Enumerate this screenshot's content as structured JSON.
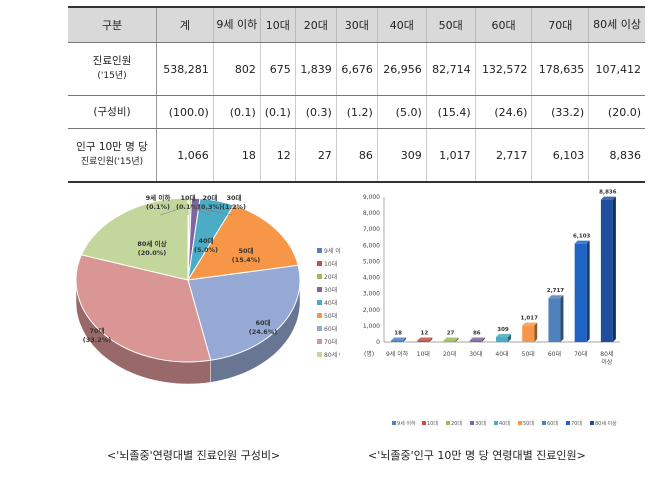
{
  "table": {
    "header": [
      "구분",
      "계",
      "9세 이하",
      "10대",
      "20대",
      "30대",
      "40대",
      "50대",
      "60대",
      "70대",
      "80세 이상"
    ],
    "rows": [
      {
        "label_line1": "진료인원",
        "label_line2": "('15년)",
        "values": [
          "538,281",
          "802",
          "675",
          "1,839",
          "6,676",
          "26,956",
          "82,714",
          "132,572",
          "178,635",
          "107,412"
        ]
      },
      {
        "label_line1": "(구성비)",
        "label_line2": "",
        "values": [
          "(100.0)",
          "(0.1)",
          "(0.1)",
          "(0.3)",
          "(1.2)",
          "(5.0)",
          "(15.4)",
          "(24.6)",
          "(33.2)",
          "(20.0)"
        ]
      },
      {
        "label_line1": "인구 10만 명 당",
        "label_line2": "진료인원('15년)",
        "values": [
          "1,066",
          "18",
          "12",
          "27",
          "86",
          "309",
          "1,017",
          "2,717",
          "6,103",
          "8,836"
        ]
      }
    ]
  },
  "chart_data": [
    {
      "type": "pie",
      "categories": [
        "9세 이하",
        "10대",
        "20대",
        "30대",
        "40대",
        "50대",
        "60대",
        "70대",
        "80세 이상"
      ],
      "values": [
        0.1,
        0.1,
        0.3,
        1.2,
        5.0,
        15.4,
        24.6,
        33.2,
        20.0
      ],
      "labels": [
        "9세 이하\n(0.1%)",
        "10대\n(0.1%)",
        "20대\n(0.3%)",
        "30대\n(1.2%)",
        "40대\n(5.0%)",
        "50대\n(15.4%)",
        "60대\n(24.6%)",
        "70대\n(33.2%)",
        "80세 이상\n(20.0%)"
      ],
      "colors": [
        "#4f81bd",
        "#c0504d",
        "#9bbb59",
        "#8064a2",
        "#4bacc6",
        "#f79646",
        "#95a9d4",
        "#d99694",
        "#c3d69b"
      ],
      "legend": "right",
      "caption": "<'뇌졸중'연령대별 진료인원 구성비>"
    },
    {
      "type": "bar",
      "categories": [
        "9세 이하",
        "10대",
        "20대",
        "30대",
        "40대",
        "50대",
        "60대",
        "70대",
        "80세 이상"
      ],
      "values": [
        18,
        12,
        27,
        86,
        309,
        1017,
        2717,
        6103,
        8836
      ],
      "value_labels": [
        "18",
        "12",
        "27",
        "86",
        "309",
        "1,017",
        "2,717",
        "6,103",
        "8,836"
      ],
      "tick_labels": [
        "9세 이하",
        "10대",
        "20대",
        "30대",
        "40대",
        "50대",
        "60대",
        "70대",
        "80세\n이상"
      ],
      "ylim": [
        0,
        9000
      ],
      "yticks": [
        "0",
        "1,000",
        "2,000",
        "3,000",
        "4,000",
        "5,000",
        "6,000",
        "7,000",
        "8,000",
        "9,000"
      ],
      "unit": "(명)",
      "colors": [
        "#4f81bd",
        "#c0504d",
        "#9bbb59",
        "#8064a2",
        "#4bacc6",
        "#f79646",
        "#4f81bd",
        "#1f63c4",
        "#1f4e9c"
      ],
      "legend": "bottom",
      "caption": "<'뇌졸중'인구 10만 명 당 연령대별 진료인원>"
    }
  ]
}
